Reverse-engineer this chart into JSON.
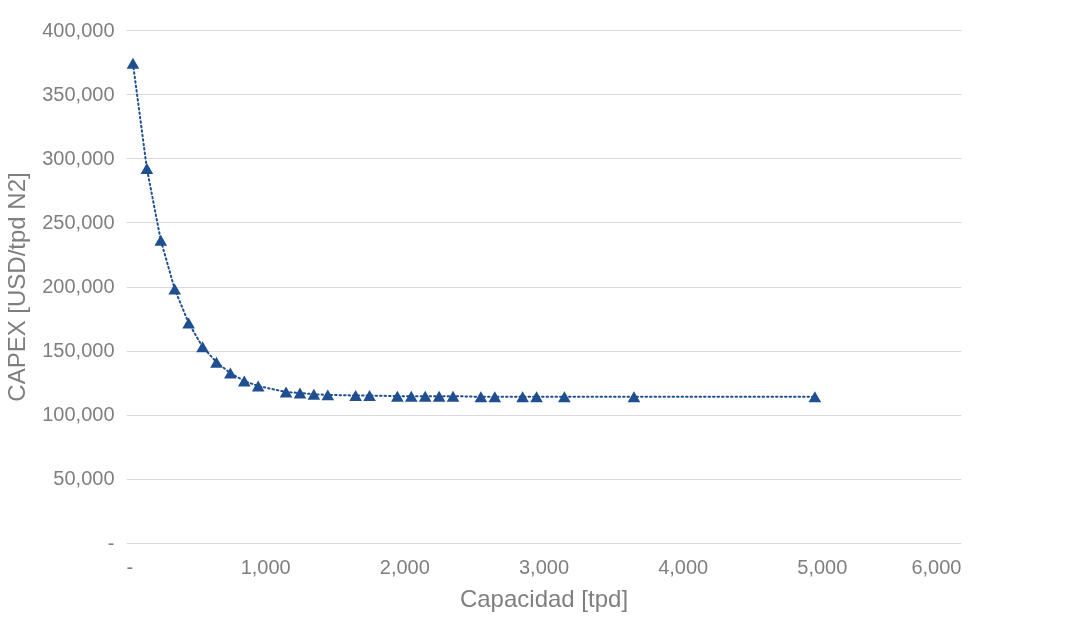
{
  "chart_data": {
    "type": "line",
    "xlabel": "Capacidad [tpd]",
    "ylabel": "CAPEX [USD/tpd N2]",
    "x": [
      50,
      150,
      250,
      350,
      450,
      550,
      650,
      750,
      850,
      950,
      1150,
      1250,
      1350,
      1450,
      1650,
      1750,
      1950,
      2050,
      2150,
      2250,
      2350,
      2550,
      2650,
      2850,
      2950,
      3150,
      3650,
      4950
    ],
    "series": [
      {
        "color": "#1f4e91",
        "values": [
          374000,
          292000,
          236000,
          198000,
          171500,
          153000,
          141000,
          132500,
          126300,
          122400,
          117700,
          117000,
          116000,
          115500,
          115000,
          115000,
          114500,
          114500,
          114500,
          114500,
          114500,
          114000,
          114000,
          114000,
          114000,
          114000,
          114000,
          114000
        ]
      }
    ],
    "xlim": [
      0,
      6000
    ],
    "xticks": [
      {
        "value": 0,
        "label": "-"
      },
      {
        "value": 1000,
        "label": "1,000"
      },
      {
        "value": 2000,
        "label": "2,000"
      },
      {
        "value": 3000,
        "label": "3,000"
      },
      {
        "value": 4000,
        "label": "4,000"
      },
      {
        "value": 5000,
        "label": "5,000"
      },
      {
        "value": 6000,
        "label": "6,000"
      }
    ],
    "ylim": [
      0,
      400000
    ],
    "yticks": [
      {
        "value": 0,
        "label": "-"
      },
      {
        "value": 50000,
        "label": "50,000"
      },
      {
        "value": 100000,
        "label": "100,000"
      },
      {
        "value": 150000,
        "label": "150,000"
      },
      {
        "value": 200000,
        "label": "200,000"
      },
      {
        "value": 250000,
        "label": "250,000"
      },
      {
        "value": 300000,
        "label": "300,000"
      },
      {
        "value": 350000,
        "label": "350,000"
      },
      {
        "value": 400000,
        "label": "400,000"
      }
    ],
    "grid": "y",
    "marker": "triangle",
    "line_style": "dotted",
    "legend": false
  }
}
